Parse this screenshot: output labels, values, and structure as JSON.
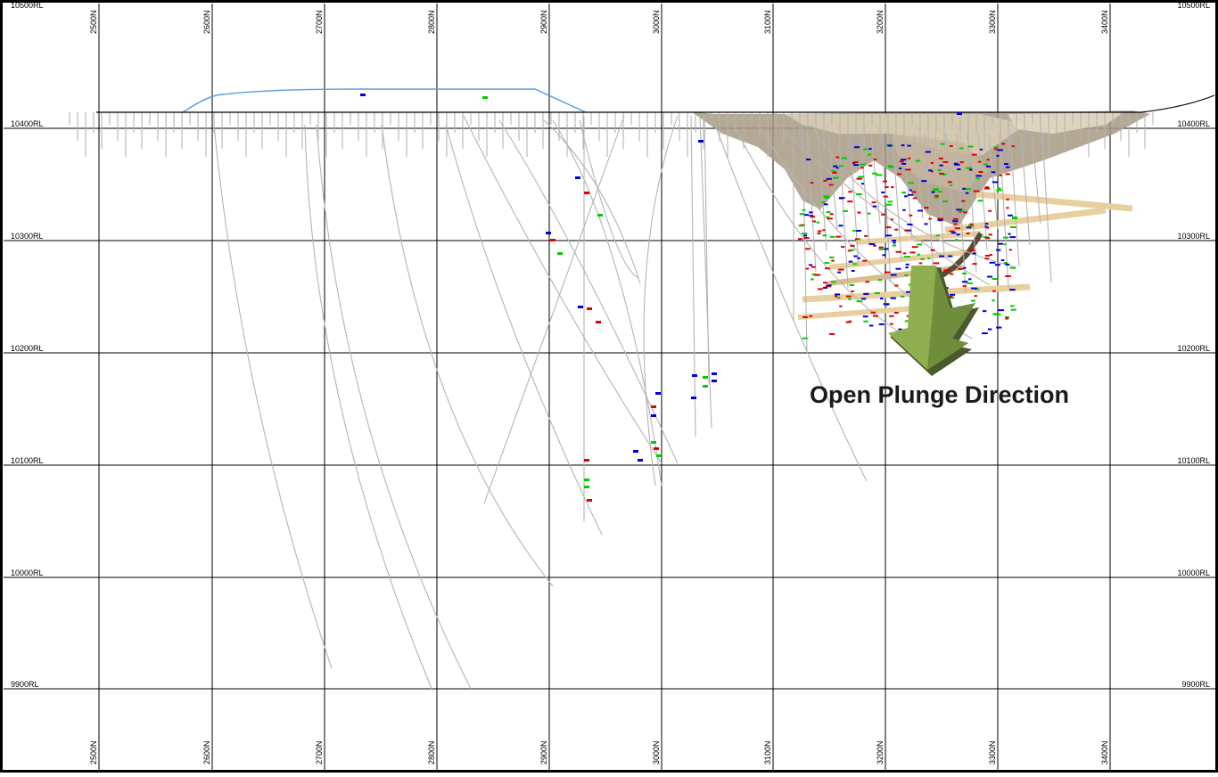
{
  "section": {
    "northings": [
      "2500N",
      "2600N",
      "2700N",
      "2800N",
      "2900N",
      "3000N",
      "3100N",
      "3200N",
      "3300N",
      "3400N"
    ],
    "rls": [
      "10500RL",
      "10400RL",
      "10300RL",
      "10200RL",
      "10100RL",
      "10000RL",
      "9900RL"
    ],
    "annotation": "Open Plunge Direction",
    "colors": {
      "grid": "#000000",
      "drillhole": "#b4b4b4",
      "topo_surface": "#000000",
      "waste_dump": "#5b9bd5",
      "pit_shell": "#9c8e78",
      "underground_dev": "#e8cfa0",
      "assay_high": "#e00000",
      "assay_mid": "#00cc00",
      "assay_low": "#0000dd",
      "arrow": "#8fae52"
    }
  }
}
